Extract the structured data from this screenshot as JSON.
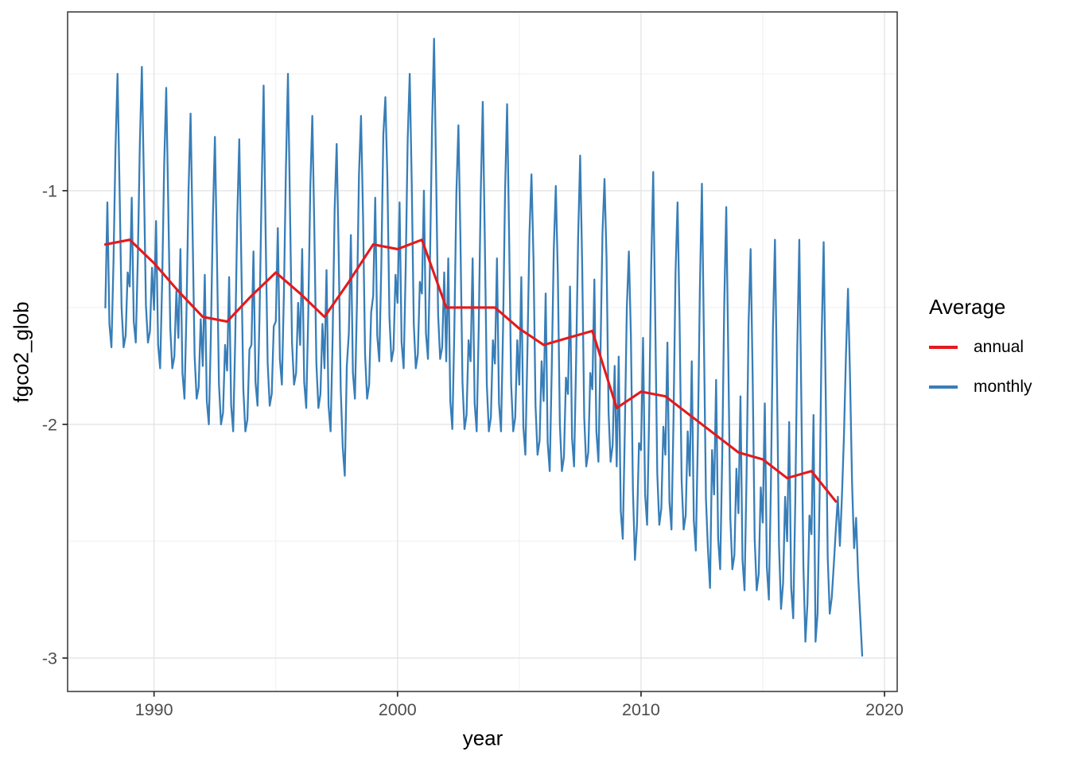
{
  "chart_data": {
    "type": "line",
    "title": "",
    "xlabel": "year",
    "ylabel": "fgco2_glob",
    "xlim": [
      1986.45,
      2020.52
    ],
    "ylim": [
      -3.143,
      -0.235
    ],
    "x_ticks": [
      1990,
      2000,
      2010,
      2020
    ],
    "x_tick_labels": [
      "1990",
      "2000",
      "2010",
      "2020"
    ],
    "x_minor": [
      1995,
      2005,
      2015
    ],
    "y_ticks": [
      -1,
      -2,
      -3
    ],
    "y_tick_labels": [
      "-1",
      "-2",
      "-3"
    ],
    "y_minor": [
      -0.5,
      -1.5,
      -2.5
    ],
    "grid": {
      "major_color": "#E3E3E3",
      "minor_color": "#EDEDED"
    },
    "panel_border_color": "#333333",
    "tick_color": "#333333",
    "tick_label_color": "#4D4D4D",
    "legend": {
      "title": "Average",
      "position": "right",
      "entries": [
        {
          "label": "annual",
          "color": "#E41A1C"
        },
        {
          "label": "monthly",
          "color": "#377EB8"
        }
      ]
    },
    "series": [
      {
        "name": "monthly",
        "color": "#377EB8",
        "width": 2.3,
        "x_start": 1988.0,
        "x_step": 0.0833333,
        "values": [
          -1.5,
          -1.05,
          -1.57,
          -1.67,
          -1.31,
          -0.82,
          -0.5,
          -0.99,
          -1.5,
          -1.67,
          -1.62,
          -1.35,
          -1.41,
          -1.03,
          -1.56,
          -1.65,
          -1.29,
          -0.8,
          -0.47,
          -0.96,
          -1.49,
          -1.65,
          -1.6,
          -1.33,
          -1.51,
          -1.13,
          -1.66,
          -1.76,
          -1.39,
          -0.89,
          -0.56,
          -1.06,
          -1.59,
          -1.76,
          -1.71,
          -1.43,
          -1.63,
          -1.25,
          -1.78,
          -1.89,
          -1.51,
          -1.0,
          -0.67,
          -1.18,
          -1.71,
          -1.89,
          -1.84,
          -1.55,
          -1.75,
          -1.36,
          -1.9,
          -2.0,
          -1.62,
          -1.11,
          -0.77,
          -1.28,
          -1.83,
          -2.0,
          -1.95,
          -1.66,
          -1.77,
          -1.37,
          -1.92,
          -2.03,
          -1.64,
          -1.12,
          -0.78,
          -1.3,
          -1.85,
          -2.03,
          -1.98,
          -1.68,
          -1.66,
          -1.26,
          -1.82,
          -1.92,
          -1.53,
          -1.01,
          -0.55,
          -1.19,
          -1.74,
          -1.92,
          -1.87,
          -1.58,
          -1.56,
          -1.16,
          -1.72,
          -1.83,
          -1.44,
          -0.9,
          -0.5,
          -1.08,
          -1.65,
          -1.83,
          -1.78,
          -1.48,
          -1.66,
          -1.25,
          -1.82,
          -1.93,
          -1.53,
          -0.99,
          -0.68,
          -1.17,
          -1.74,
          -1.93,
          -1.87,
          -1.57,
          -1.76,
          -1.34,
          -1.92,
          -2.03,
          -1.63,
          -1.08,
          -0.8,
          -1.27,
          -1.85,
          -2.1,
          -2.22,
          -1.75,
          -1.61,
          -1.19,
          -1.78,
          -1.89,
          -1.48,
          -0.93,
          -0.68,
          -1.11,
          -1.7,
          -1.89,
          -1.83,
          -1.52,
          -1.45,
          -1.03,
          -1.62,
          -1.73,
          -1.32,
          -0.76,
          -0.6,
          -0.95,
          -1.54,
          -1.73,
          -1.68,
          -1.36,
          -1.48,
          -1.05,
          -1.65,
          -1.76,
          -1.34,
          -0.78,
          -0.5,
          -0.97,
          -1.57,
          -1.76,
          -1.7,
          -1.39,
          -1.44,
          -1.0,
          -1.61,
          -1.72,
          -1.3,
          -0.73,
          -0.35,
          -0.92,
          -1.53,
          -1.72,
          -1.67,
          -1.35,
          -1.73,
          -1.29,
          -1.9,
          -2.02,
          -1.59,
          -1.01,
          -0.72,
          -1.21,
          -1.82,
          -2.02,
          -1.96,
          -1.64,
          -1.73,
          -1.29,
          -1.91,
          -2.03,
          -1.59,
          -1.01,
          -0.62,
          -1.21,
          -1.83,
          -2.03,
          -1.97,
          -1.64,
          -1.74,
          -1.29,
          -1.91,
          -2.03,
          -1.59,
          -1.0,
          -0.63,
          -1.2,
          -1.83,
          -2.03,
          -1.97,
          -1.64,
          -1.83,
          -1.37,
          -2.01,
          -2.13,
          -1.69,
          -1.19,
          -0.93,
          -1.29,
          -1.92,
          -2.13,
          -2.07,
          -1.73,
          -1.9,
          -1.44,
          -2.08,
          -2.2,
          -1.76,
          -1.25,
          -0.98,
          -1.36,
          -2.0,
          -2.2,
          -2.14,
          -1.8,
          -1.87,
          -1.41,
          -2.06,
          -2.18,
          -1.73,
          -1.2,
          -0.85,
          -1.32,
          -1.97,
          -2.18,
          -2.12,
          -1.78,
          -1.85,
          -1.38,
          -2.03,
          -2.16,
          -1.7,
          -1.18,
          -0.95,
          -1.29,
          -1.95,
          -2.16,
          -2.09,
          -1.75,
          -2.18,
          -1.71,
          -2.37,
          -2.49,
          -2.03,
          -1.5,
          -1.26,
          -1.62,
          -2.28,
          -2.58,
          -2.43,
          -2.08,
          -2.11,
          -1.63,
          -2.3,
          -2.43,
          -1.96,
          -1.33,
          -0.92,
          -1.55,
          -2.21,
          -2.43,
          -2.36,
          -2.01,
          -2.13,
          -1.65,
          -2.33,
          -2.45,
          -1.98,
          -1.35,
          -1.05,
          -1.56,
          -2.24,
          -2.45,
          -2.39,
          -2.03,
          -2.22,
          -1.73,
          -2.41,
          -2.54,
          -2.06,
          -1.42,
          -0.97,
          -1.64,
          -2.32,
          -2.54,
          -2.7,
          -2.11,
          -2.3,
          -1.81,
          -2.49,
          -2.62,
          -2.14,
          -1.49,
          -1.07,
          -1.71,
          -2.4,
          -2.62,
          -2.56,
          -2.19,
          -2.38,
          -1.88,
          -2.58,
          -2.71,
          -2.22,
          -1.57,
          -1.25,
          -1.79,
          -2.49,
          -2.71,
          -2.64,
          -2.27,
          -2.42,
          -1.91,
          -2.61,
          -2.75,
          -2.26,
          -1.59,
          -1.21,
          -1.82,
          -2.52,
          -2.79,
          -2.68,
          -2.31,
          -2.5,
          -1.99,
          -2.7,
          -2.83,
          -2.34,
          -1.67,
          -1.21,
          -1.9,
          -2.6,
          -2.93,
          -2.77,
          -2.39,
          -2.47,
          -1.96,
          -2.93,
          -2.81,
          -2.31,
          -1.63,
          -1.22,
          -1.86,
          -2.57,
          -2.81,
          -2.74,
          -2.6,
          -2.45,
          -2.31,
          -2.52,
          -2.31,
          -2.05,
          -1.7,
          -1.42,
          -1.8,
          -2.25,
          -2.53,
          -2.4,
          -2.65,
          -2.82,
          -2.99
        ]
      },
      {
        "name": "annual",
        "color": "#E41A1C",
        "width": 3.1,
        "x": [
          1988,
          1989,
          1990,
          1991,
          1992,
          1993,
          1994,
          1995,
          1996,
          1997,
          1998,
          1999,
          2000,
          2001,
          2002,
          2003,
          2004,
          2005,
          2006,
          2007,
          2008,
          2009,
          2010,
          2011,
          2012,
          2013,
          2014,
          2015,
          2016,
          2017,
          2018
        ],
        "values": [
          -1.23,
          -1.21,
          -1.31,
          -1.43,
          -1.54,
          -1.56,
          -1.45,
          -1.35,
          -1.44,
          -1.54,
          -1.39,
          -1.23,
          -1.25,
          -1.21,
          -1.5,
          -1.5,
          -1.5,
          -1.59,
          -1.66,
          -1.63,
          -1.6,
          -1.93,
          -1.86,
          -1.88,
          -1.96,
          -2.04,
          -2.12,
          -2.15,
          -2.23,
          -2.2,
          -2.33
        ]
      }
    ]
  }
}
